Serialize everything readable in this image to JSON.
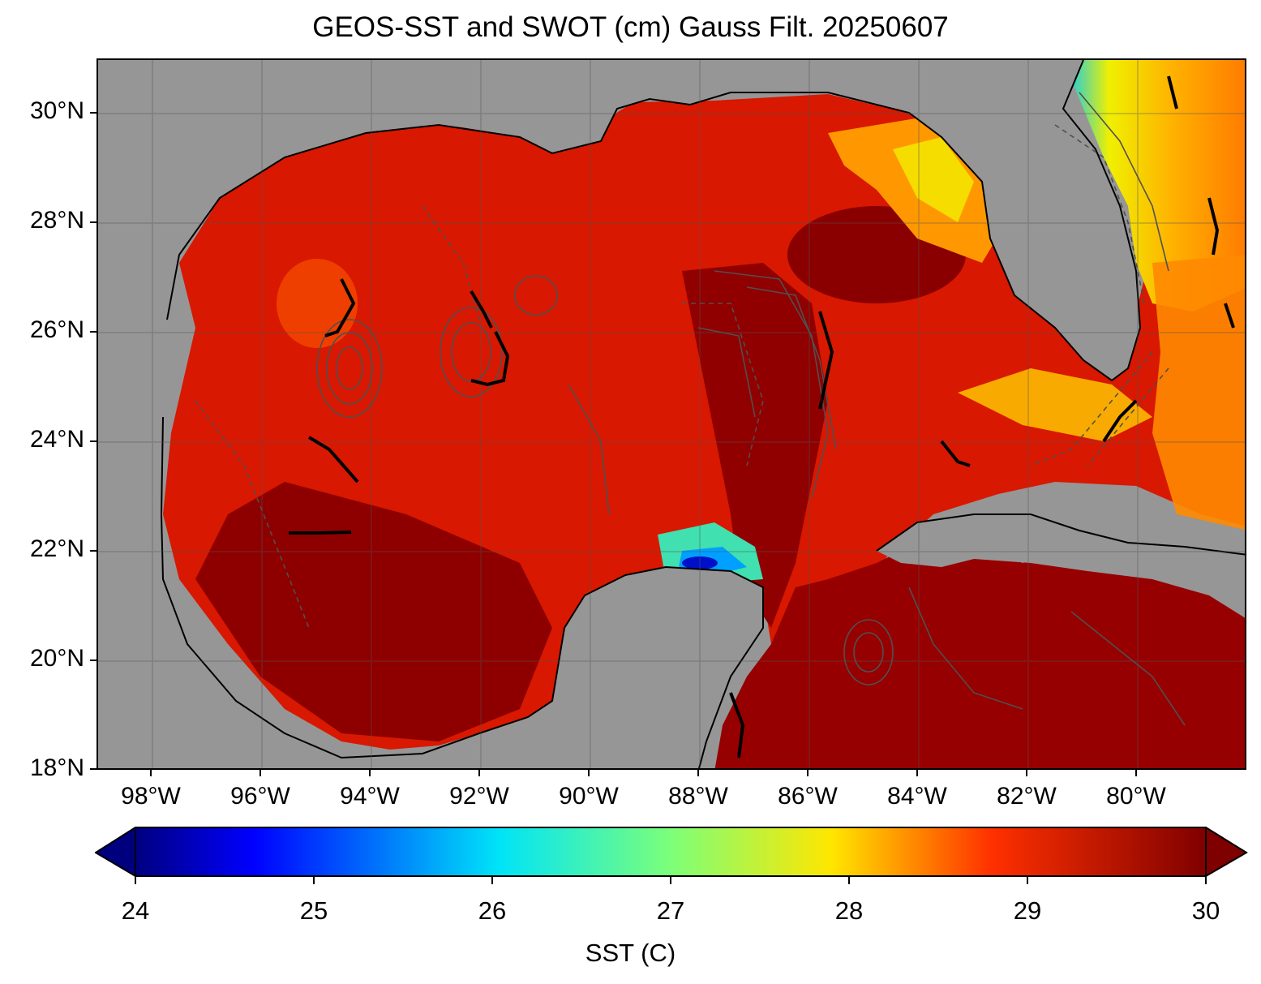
{
  "title": "GEOS-SST  and SWOT (cm) Gauss Filt. 20250607",
  "map": {
    "lat_labels": [
      "30°N",
      "28°N",
      "26°N",
      "24°N",
      "22°N",
      "20°N",
      "18°N"
    ],
    "lon_labels": [
      "98°W",
      "96°W",
      "94°W",
      "92°W",
      "90°W",
      "88°W",
      "86°W",
      "84°W",
      "82°W",
      "80°W"
    ],
    "extent": {
      "lon_min": -99.0,
      "lon_max": -78.0,
      "lat_min": 18.0,
      "lat_max": 31.0
    },
    "land_color": "#969696",
    "contour_color": "#505050"
  },
  "colorbar": {
    "label": "SST (C)",
    "ticks": [
      "24",
      "25",
      "26",
      "27",
      "28",
      "29",
      "30"
    ],
    "range": [
      24,
      30
    ],
    "colormap": "jet",
    "extend": "both"
  }
}
